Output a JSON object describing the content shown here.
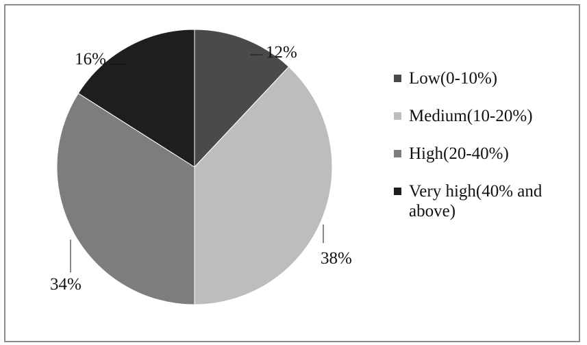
{
  "chart_data": {
    "type": "pie",
    "categories": [
      "Low(0-10%)",
      "Medium(10-20%)",
      "High(20-40%)",
      "Very high(40% and above)"
    ],
    "values": [
      12,
      38,
      34,
      16
    ],
    "value_labels": [
      "12%",
      "38%",
      "34%",
      "16%"
    ],
    "colors": [
      "#4a4a4a",
      "#bdbdbd",
      "#7d7d7d",
      "#1e1e1e"
    ],
    "title": "",
    "legend_position": "right",
    "start_angle": "12 o'clock, clockwise"
  }
}
